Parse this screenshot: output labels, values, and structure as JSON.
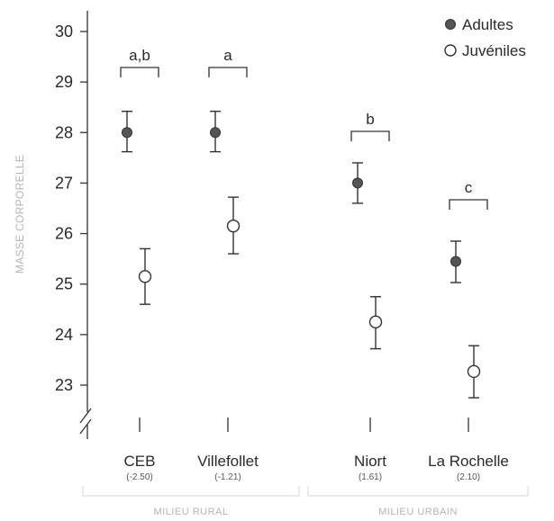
{
  "chart_data": {
    "type": "scatter",
    "title": "",
    "ylabel": "MASSE CORPORELLE",
    "ylim": [
      22.5,
      30.3
    ],
    "yticks": [
      23,
      24,
      25,
      26,
      27,
      28,
      29,
      30
    ],
    "axis_break": true,
    "grid": false,
    "legend_position": "top-right",
    "categories": [
      "CEB",
      "Villefollet",
      "Niort",
      "La Rochelle"
    ],
    "category_sublabels": [
      "(-2.50)",
      "(-1.21)",
      "(1.61)",
      "(2.10)"
    ],
    "groups": [
      {
        "label": "MILIEU RURAL",
        "categories": [
          "CEB",
          "Villefollet"
        ]
      },
      {
        "label": "MILIEU URBAIN",
        "categories": [
          "Niort",
          "La Rochelle"
        ]
      }
    ],
    "series": [
      {
        "name": "Adultes",
        "marker": "filled",
        "color": "#555555",
        "values": [
          28.0,
          28.0,
          27.0,
          25.45
        ],
        "error_low": [
          27.62,
          27.62,
          26.6,
          25.03
        ],
        "error_high": [
          28.42,
          28.42,
          27.4,
          25.85
        ]
      },
      {
        "name": "Juvéniles",
        "marker": "open",
        "color": "#333333",
        "values": [
          25.15,
          26.15,
          24.25,
          23.27
        ],
        "error_low": [
          24.6,
          25.6,
          23.72,
          22.75
        ],
        "error_high": [
          25.7,
          26.72,
          24.75,
          23.78
        ]
      }
    ],
    "significance": [
      {
        "label": "a,b",
        "category": "CEB"
      },
      {
        "label": "a",
        "category": "Villefollet"
      },
      {
        "label": "b",
        "category": "Niort"
      },
      {
        "label": "c",
        "category": "La Rochelle"
      }
    ]
  }
}
